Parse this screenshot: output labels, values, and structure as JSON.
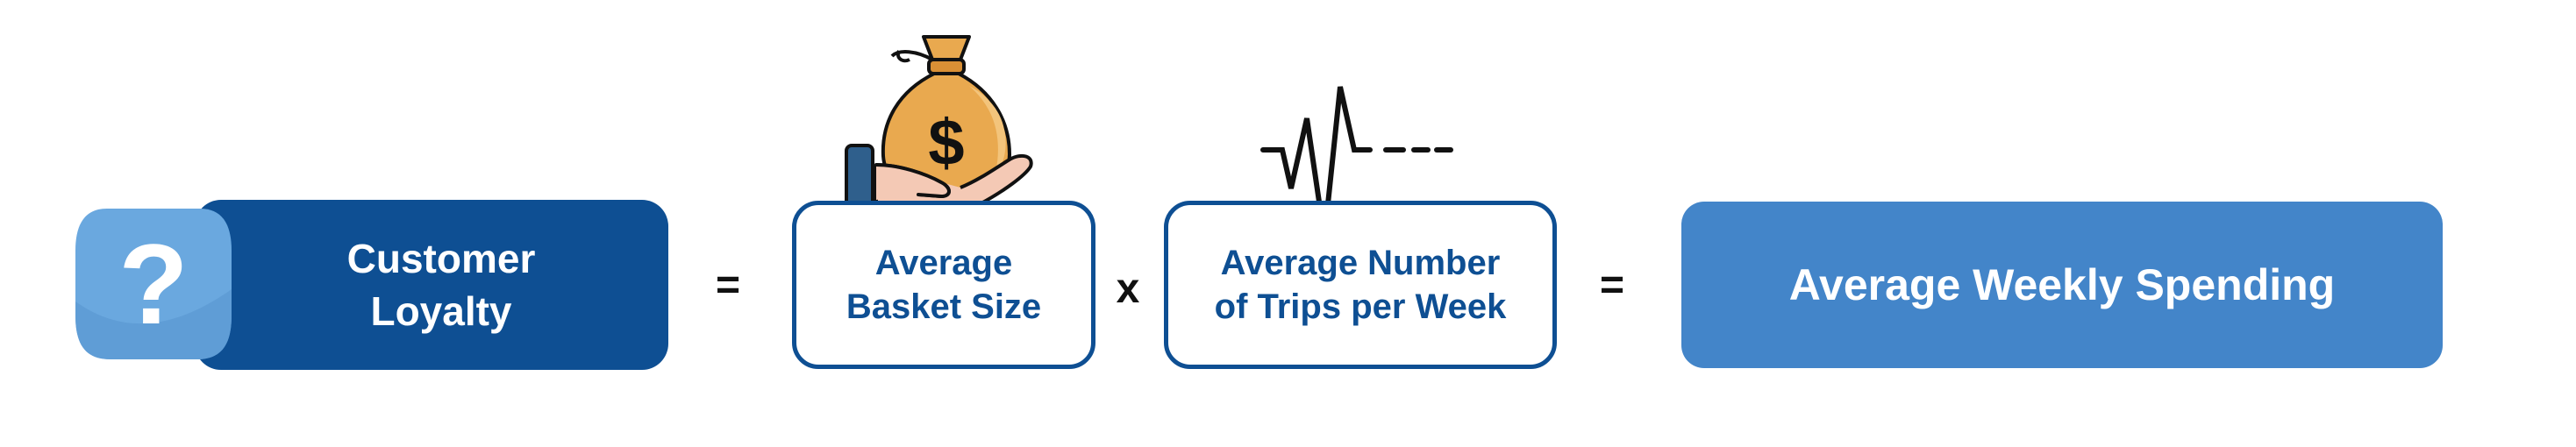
{
  "equation": {
    "loyalty": {
      "label_line1": "Customer",
      "label_line2": "Loyalty",
      "icon": "question-mark-icon"
    },
    "operator_equals_1": "=",
    "basket": {
      "label_line1": "Average",
      "label_line2": "Basket Size",
      "icon": "money-bag-hand-icon"
    },
    "operator_times": "x",
    "trips": {
      "label_line1": "Average Number",
      "label_line2": "of Trips per Week",
      "icon": "heartbeat-pulse-icon"
    },
    "operator_equals_2": "=",
    "result": {
      "label": "Average Weekly Spending"
    }
  },
  "colors": {
    "dark_blue": "#0e4f93",
    "light_blue": "#4385c9",
    "badge_blue": "#6aa8df",
    "bag_orange": "#e9a94f"
  }
}
